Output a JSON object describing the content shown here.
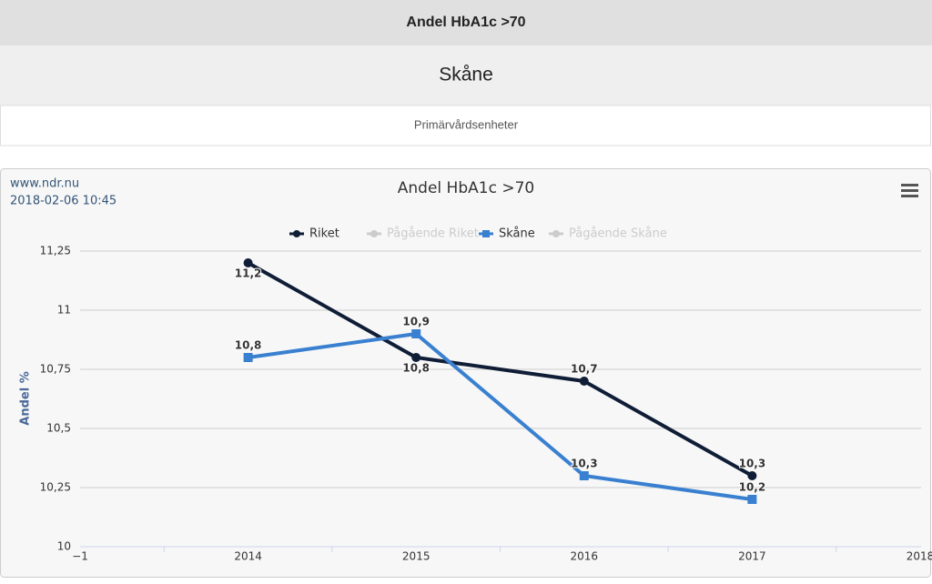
{
  "header": {
    "title": "Andel HbA1c >70",
    "region": "Skåne",
    "subtitle": "Primärvårdsenheter"
  },
  "chart_data": {
    "type": "line",
    "title": "Andel HbA1c >70",
    "source": "www.ndr.nu",
    "date": "2018-02-06 10:45",
    "y_label": "Andel %",
    "categories": [
      "−1",
      "2014",
      "2015",
      "2016",
      "2017",
      "2018"
    ],
    "series": [
      {
        "name": "Riket",
        "color": "#0f1d36",
        "marker": "circle",
        "values": [
          null,
          11.2,
          10.8,
          10.7,
          10.3,
          null
        ],
        "value_labels": [
          null,
          "11,2",
          "10,8",
          "10,7",
          "10,3",
          null
        ]
      },
      {
        "name": "Pågående Riket",
        "color": "#cccccc",
        "marker": "circle",
        "values": [
          null,
          null,
          null,
          null,
          null,
          null
        ]
      },
      {
        "name": "Skåne",
        "color": "#3a80d0",
        "marker": "square",
        "values": [
          null,
          10.8,
          10.9,
          10.3,
          10.2,
          null
        ],
        "value_labels": [
          null,
          "10,8",
          "10,9",
          "10,3",
          "10,2",
          null
        ]
      },
      {
        "name": "Pågående Skåne",
        "color": "#cccccc",
        "marker": "circle",
        "values": [
          null,
          null,
          null,
          null,
          null,
          null
        ]
      }
    ],
    "ylim": [
      10,
      11.25
    ],
    "yticks": [
      10,
      {
        "value": 10.25,
        "label": "10,25"
      },
      {
        "value": 10.5,
        "label": "10,5"
      },
      {
        "value": 10.75,
        "label": "10,75"
      },
      11,
      {
        "value": 11.25,
        "label": "11,25"
      }
    ],
    "grid": true,
    "legend": "top"
  }
}
